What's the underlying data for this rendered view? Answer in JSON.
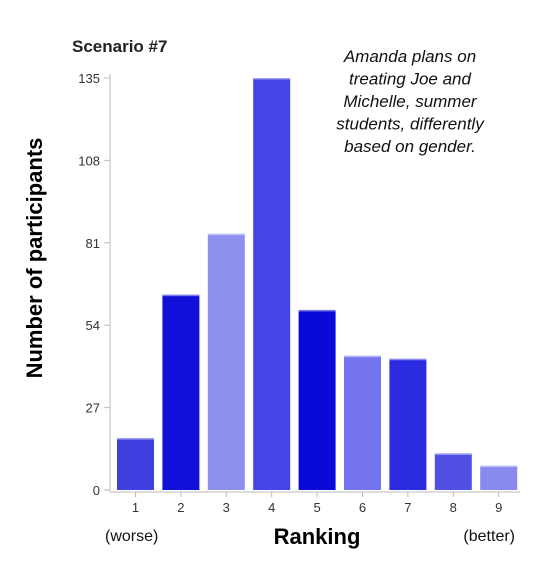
{
  "chart_data": {
    "type": "bar",
    "title": "Scenario #7",
    "annotation": [
      "Amanda plans on",
      "treating Joe and",
      "Michelle, summer",
      "students, differently",
      "based on gender."
    ],
    "xlabel": "Ranking",
    "ylabel": "Number of participants",
    "x_end_labels": {
      "left": "(worse)",
      "right": "(better)"
    },
    "categories": [
      "1",
      "2",
      "3",
      "4",
      "5",
      "6",
      "7",
      "8",
      "9"
    ],
    "values": [
      17,
      64,
      84,
      135,
      59,
      44,
      43,
      12,
      8
    ],
    "yticks": [
      0,
      27,
      54,
      81,
      108,
      135
    ],
    "ylim": [
      0,
      135
    ],
    "grid": false,
    "bar_colors": [
      "#4040e0",
      "#1010d8",
      "#8f8ff0",
      "#4545e6",
      "#0a0ad8",
      "#7474ee",
      "#2b2be0",
      "#5050e4",
      "#8a8aee"
    ]
  }
}
